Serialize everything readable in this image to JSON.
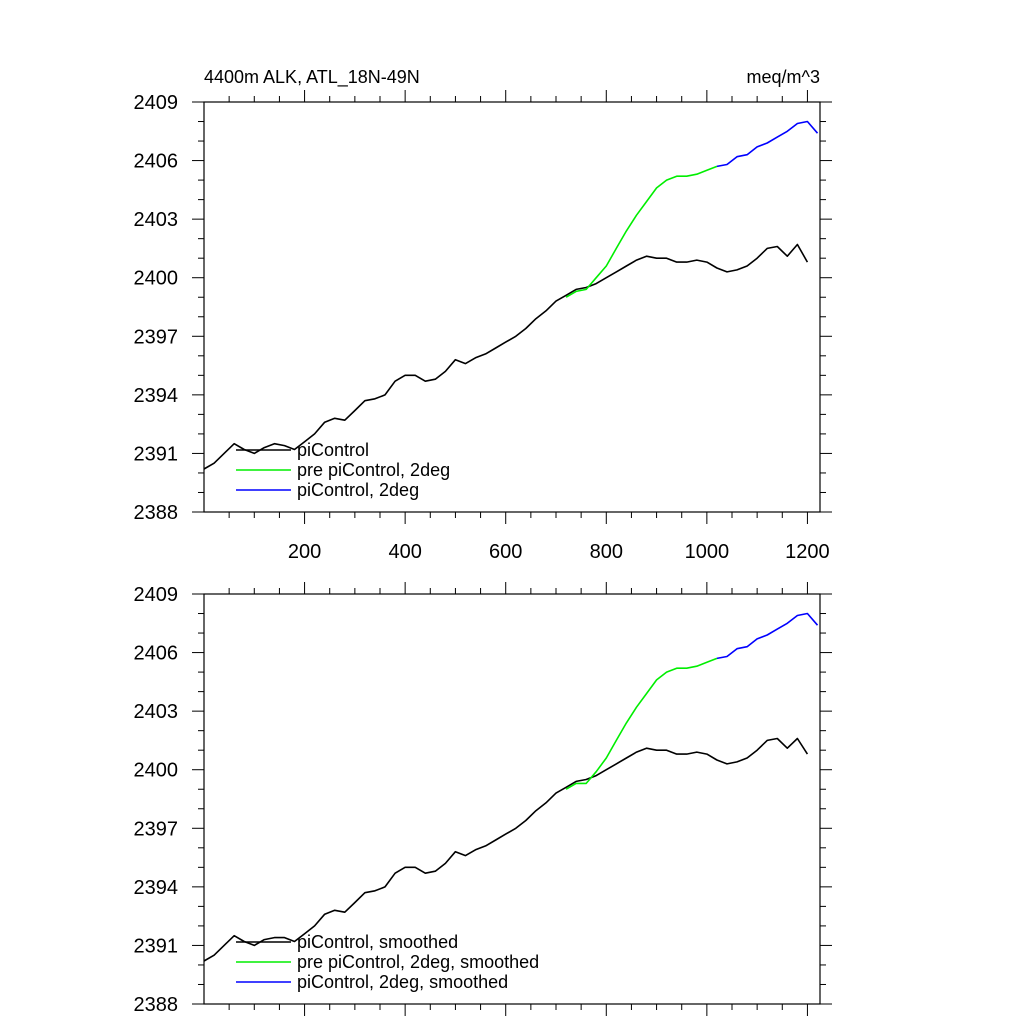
{
  "chart_data": [
    {
      "type": "line",
      "title": "4400m ALK, ATL_18N-49N",
      "units": "meq/m^3",
      "xlim": [
        0,
        1225
      ],
      "ylim": [
        2388,
        2409
      ],
      "xticks": [
        200,
        400,
        600,
        800,
        1000,
        1200
      ],
      "xtick_labels_shown": true,
      "yticks": [
        2388,
        2391,
        2394,
        2397,
        2400,
        2403,
        2406,
        2409
      ],
      "colors": {
        "piControl": "#000000",
        "pre": "#00ee00",
        "twodeg": "#0000ff"
      },
      "legend": [
        "piControl",
        "pre piControl, 2deg",
        "piControl, 2deg"
      ],
      "legend_placement": "bottom-left",
      "series": [
        {
          "name": "piControl",
          "color": "#000000",
          "x": [
            0,
            20,
            40,
            60,
            80,
            100,
            120,
            140,
            160,
            180,
            200,
            220,
            240,
            260,
            280,
            300,
            320,
            340,
            360,
            380,
            400,
            420,
            440,
            460,
            480,
            500,
            520,
            540,
            560,
            580,
            600,
            620,
            640,
            660,
            680,
            700,
            720,
            740,
            760,
            780,
            800,
            820,
            840,
            860,
            880,
            900,
            920,
            940,
            960,
            980,
            1000,
            1020,
            1040,
            1060,
            1080,
            1100,
            1120,
            1140,
            1160,
            1180,
            1200
          ],
          "y": [
            2390.2,
            2390.5,
            2391.0,
            2391.5,
            2391.2,
            2391.0,
            2391.3,
            2391.5,
            2391.4,
            2391.2,
            2391.6,
            2392.0,
            2392.6,
            2392.8,
            2392.7,
            2393.2,
            2393.7,
            2393.8,
            2394.0,
            2394.7,
            2395.0,
            2395.0,
            2394.7,
            2394.8,
            2395.2,
            2395.8,
            2395.6,
            2395.9,
            2396.1,
            2396.4,
            2396.7,
            2397.0,
            2397.4,
            2397.9,
            2398.3,
            2398.8,
            2399.1,
            2399.4,
            2399.5,
            2399.7,
            2400.0,
            2400.3,
            2400.6,
            2400.9,
            2401.1,
            2401.0,
            2401.0,
            2400.8,
            2400.8,
            2400.9,
            2400.8,
            2400.5,
            2400.3,
            2400.4,
            2400.6,
            2401.0,
            2401.5,
            2401.6,
            2401.1,
            2401.7,
            2400.8
          ]
        },
        {
          "name": "pre piControl, 2deg",
          "color": "#00ee00",
          "x": [
            720,
            740,
            760,
            780,
            800,
            820,
            840,
            860,
            880,
            900,
            920,
            940,
            960,
            980,
            1000,
            1020
          ],
          "y": [
            2399.0,
            2399.3,
            2399.4,
            2400.0,
            2400.6,
            2401.5,
            2402.4,
            2403.2,
            2403.9,
            2404.6,
            2405.0,
            2405.2,
            2405.2,
            2405.3,
            2405.5,
            2405.7
          ]
        },
        {
          "name": "piControl, 2deg",
          "color": "#0000ff",
          "x": [
            1020,
            1040,
            1060,
            1080,
            1100,
            1120,
            1140,
            1160,
            1180,
            1200,
            1220
          ],
          "y": [
            2405.7,
            2405.8,
            2406.2,
            2406.3,
            2406.7,
            2406.9,
            2407.2,
            2407.5,
            2407.9,
            2408.0,
            2407.4
          ]
        }
      ]
    },
    {
      "type": "line",
      "title": "",
      "units": "",
      "xlim": [
        0,
        1225
      ],
      "ylim": [
        2388,
        2409
      ],
      "xticks": [
        200,
        400,
        600,
        800,
        1000,
        1200
      ],
      "xtick_labels_shown": false,
      "yticks": [
        2388,
        2391,
        2394,
        2397,
        2400,
        2403,
        2406,
        2409
      ],
      "legend": [
        "piControl, smoothed",
        "pre piControl, 2deg, smoothed",
        "piControl, 2deg, smoothed"
      ],
      "legend_placement": "bottom-left",
      "series": [
        {
          "name": "piControl, smoothed",
          "color": "#000000",
          "x": [
            0,
            20,
            40,
            60,
            80,
            100,
            120,
            140,
            160,
            180,
            200,
            220,
            240,
            260,
            280,
            300,
            320,
            340,
            360,
            380,
            400,
            420,
            440,
            460,
            480,
            500,
            520,
            540,
            560,
            580,
            600,
            620,
            640,
            660,
            680,
            700,
            720,
            740,
            760,
            780,
            800,
            820,
            840,
            860,
            880,
            900,
            920,
            940,
            960,
            980,
            1000,
            1020,
            1040,
            1060,
            1080,
            1100,
            1120,
            1140,
            1160,
            1180,
            1200
          ],
          "y": [
            2390.2,
            2390.5,
            2391.0,
            2391.5,
            2391.2,
            2391.0,
            2391.3,
            2391.4,
            2391.4,
            2391.2,
            2391.6,
            2392.0,
            2392.6,
            2392.8,
            2392.7,
            2393.2,
            2393.7,
            2393.8,
            2394.0,
            2394.7,
            2395.0,
            2395.0,
            2394.7,
            2394.8,
            2395.2,
            2395.8,
            2395.6,
            2395.9,
            2396.1,
            2396.4,
            2396.7,
            2397.0,
            2397.4,
            2397.9,
            2398.3,
            2398.8,
            2399.1,
            2399.4,
            2399.5,
            2399.7,
            2400.0,
            2400.3,
            2400.6,
            2400.9,
            2401.1,
            2401.0,
            2401.0,
            2400.8,
            2400.8,
            2400.9,
            2400.8,
            2400.5,
            2400.3,
            2400.4,
            2400.6,
            2401.0,
            2401.5,
            2401.6,
            2401.1,
            2401.6,
            2400.8
          ]
        },
        {
          "name": "pre piControl, 2deg, smoothed",
          "color": "#00ee00",
          "x": [
            720,
            740,
            760,
            780,
            800,
            820,
            840,
            860,
            880,
            900,
            920,
            940,
            960,
            980,
            1000,
            1020
          ],
          "y": [
            2399.0,
            2399.3,
            2399.3,
            2399.9,
            2400.6,
            2401.5,
            2402.4,
            2403.2,
            2403.9,
            2404.6,
            2405.0,
            2405.2,
            2405.2,
            2405.3,
            2405.5,
            2405.7
          ]
        },
        {
          "name": "piControl, 2deg, smoothed",
          "color": "#0000ff",
          "x": [
            1020,
            1040,
            1060,
            1080,
            1100,
            1120,
            1140,
            1160,
            1180,
            1200,
            1220
          ],
          "y": [
            2405.7,
            2405.8,
            2406.2,
            2406.3,
            2406.7,
            2406.9,
            2407.2,
            2407.5,
            2407.9,
            2408.0,
            2407.4
          ]
        }
      ]
    }
  ]
}
